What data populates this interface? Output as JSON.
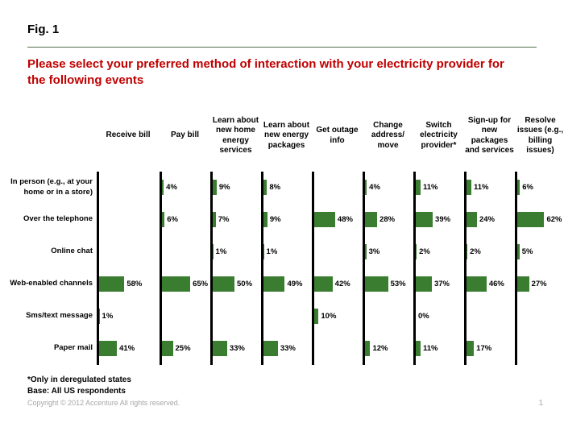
{
  "slide": {
    "fig_label": "Fig. 1",
    "title": "Please select your preferred method of interaction with your electricity provider for the following events",
    "footnotes": {
      "deregulated": "*Only in deregulated states",
      "base": "Base: All US respondents"
    },
    "copyright": "Copyright © 2012 Accenture  All rights reserved.",
    "page_number": "1"
  },
  "colors": {
    "bar_green": "#3a7d31",
    "title_red": "#c00000",
    "rule_green": "#53714e",
    "muted_gray": "#a6a6a6",
    "axis_black": "#000000"
  },
  "chart_data": {
    "type": "bar",
    "orientation": "horizontal",
    "unit": "percent",
    "title": "Please select your preferred method of interaction with your electricity provider for the following events",
    "legend": "none",
    "grid": "off",
    "value_labels": "shown to the right of each bar; blank cells have no value",
    "layout": "small-multiples: one vertical baseline per event column, interaction methods as rows",
    "categories": [
      "Receive bill",
      "Pay bill",
      "Learn about new home energy services",
      "Learn about new energy packages",
      "Get outage info",
      "Change address/ move",
      "Switch electricity provider*",
      "Sign-up for new packages and services",
      "Resolve issues (e.g., billing issues)"
    ],
    "series": [
      {
        "name": "In person (e.g., at your home or in a store)",
        "values": [
          null,
          4,
          9,
          8,
          null,
          4,
          11,
          11,
          6
        ]
      },
      {
        "name": "Over the telephone",
        "values": [
          null,
          6,
          7,
          9,
          48,
          28,
          39,
          24,
          62
        ]
      },
      {
        "name": "Online chat",
        "values": [
          null,
          null,
          1,
          1,
          null,
          3,
          2,
          2,
          5
        ]
      },
      {
        "name": "Web-enabled channels",
        "values": [
          58,
          65,
          50,
          49,
          42,
          53,
          37,
          46,
          27
        ]
      },
      {
        "name": "Sms/text message",
        "values": [
          1,
          null,
          null,
          null,
          10,
          null,
          0,
          null,
          null
        ]
      },
      {
        "name": "Paper mail",
        "values": [
          41,
          25,
          33,
          33,
          null,
          12,
          11,
          17,
          null
        ]
      }
    ],
    "xlim": [
      0,
      70
    ]
  }
}
